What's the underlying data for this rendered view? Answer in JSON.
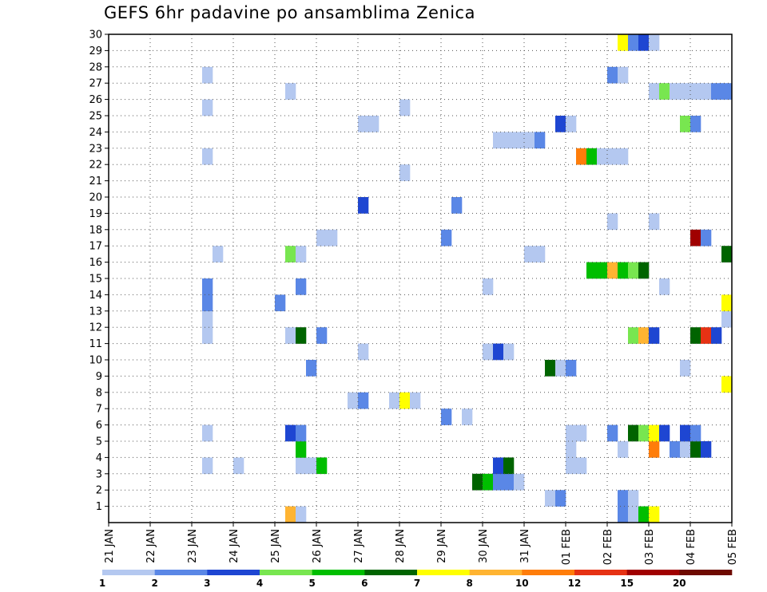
{
  "chart_data": {
    "type": "heatmap",
    "title": "GEFS 6hr padavine po ansamblima Zenica",
    "xlabel": "",
    "ylabel": "",
    "x_unit": "6-hour step",
    "x_ticks": [
      {
        "step": 0,
        "label": "21 JAN"
      },
      {
        "step": 4,
        "label": "22 JAN"
      },
      {
        "step": 8,
        "label": "23 JAN"
      },
      {
        "step": 12,
        "label": "24 JAN"
      },
      {
        "step": 16,
        "label": "25 JAN"
      },
      {
        "step": 20,
        "label": "26 JAN"
      },
      {
        "step": 24,
        "label": "27 JAN"
      },
      {
        "step": 28,
        "label": "28 JAN"
      },
      {
        "step": 32,
        "label": "29 JAN"
      },
      {
        "step": 36,
        "label": "30 JAN"
      },
      {
        "step": 40,
        "label": "31 JAN"
      },
      {
        "step": 44,
        "label": "01 FEB"
      },
      {
        "step": 48,
        "label": "02 FEB"
      },
      {
        "step": 52,
        "label": "03 FEB"
      },
      {
        "step": 56,
        "label": "04 FEB"
      },
      {
        "step": 60,
        "label": "05 FEB"
      }
    ],
    "xlim": [
      0,
      60
    ],
    "y_ticks": [
      1,
      2,
      3,
      4,
      5,
      6,
      7,
      8,
      9,
      10,
      11,
      12,
      13,
      14,
      15,
      16,
      17,
      18,
      19,
      20,
      21,
      22,
      23,
      24,
      25,
      26,
      27,
      28,
      29,
      30
    ],
    "ylim": [
      0,
      30
    ],
    "grid": true,
    "colorbar": {
      "labels": [
        "1",
        "2",
        "3",
        "4",
        "5",
        "6",
        "7",
        "8",
        "10",
        "12",
        "15",
        "20"
      ],
      "colors": [
        "#b4c8f0",
        "#5a87e6",
        "#1e46d2",
        "#78e650",
        "#00be00",
        "#006400",
        "#ffff00",
        "#ffb432",
        "#ff7d0a",
        "#e63214",
        "#a00000",
        "#6e0a00"
      ]
    },
    "cells": [
      {
        "x": 17,
        "y": 0,
        "v": 8
      },
      {
        "x": 18,
        "y": 0,
        "v": 1
      },
      {
        "x": 49,
        "y": 0,
        "v": 2
      },
      {
        "x": 50,
        "y": 0,
        "v": 1
      },
      {
        "x": 51,
        "y": 0,
        "v": 5
      },
      {
        "x": 52,
        "y": 0,
        "v": 7
      },
      {
        "x": 42,
        "y": 1,
        "v": 1
      },
      {
        "x": 43,
        "y": 1,
        "v": 2
      },
      {
        "x": 49,
        "y": 1,
        "v": 2
      },
      {
        "x": 50,
        "y": 1,
        "v": 1
      },
      {
        "x": 35,
        "y": 2,
        "v": 6
      },
      {
        "x": 36,
        "y": 2,
        "v": 5
      },
      {
        "x": 37,
        "y": 2,
        "v": 2
      },
      {
        "x": 38,
        "y": 2,
        "v": 2
      },
      {
        "x": 39,
        "y": 2,
        "v": 1
      },
      {
        "x": 9,
        "y": 3,
        "v": 1
      },
      {
        "x": 12,
        "y": 3,
        "v": 1
      },
      {
        "x": 18,
        "y": 3,
        "v": 1
      },
      {
        "x": 19,
        "y": 3,
        "v": 1
      },
      {
        "x": 20,
        "y": 3,
        "v": 5
      },
      {
        "x": 37,
        "y": 3,
        "v": 3
      },
      {
        "x": 38,
        "y": 3,
        "v": 6
      },
      {
        "x": 44,
        "y": 3,
        "v": 1
      },
      {
        "x": 45,
        "y": 3,
        "v": 1
      },
      {
        "x": 18,
        "y": 4,
        "v": 5
      },
      {
        "x": 44,
        "y": 4,
        "v": 1
      },
      {
        "x": 49,
        "y": 4,
        "v": 1
      },
      {
        "x": 52,
        "y": 4,
        "v": 10
      },
      {
        "x": 54,
        "y": 4,
        "v": 2
      },
      {
        "x": 55,
        "y": 4,
        "v": 1
      },
      {
        "x": 56,
        "y": 4,
        "v": 6
      },
      {
        "x": 57,
        "y": 4,
        "v": 3
      },
      {
        "x": 9,
        "y": 5,
        "v": 1
      },
      {
        "x": 17,
        "y": 5,
        "v": 3
      },
      {
        "x": 18,
        "y": 5,
        "v": 2
      },
      {
        "x": 44,
        "y": 5,
        "v": 1
      },
      {
        "x": 45,
        "y": 5,
        "v": 1
      },
      {
        "x": 48,
        "y": 5,
        "v": 2
      },
      {
        "x": 50,
        "y": 5,
        "v": 6
      },
      {
        "x": 51,
        "y": 5,
        "v": 4
      },
      {
        "x": 52,
        "y": 5,
        "v": 7
      },
      {
        "x": 53,
        "y": 5,
        "v": 3
      },
      {
        "x": 55,
        "y": 5,
        "v": 3
      },
      {
        "x": 56,
        "y": 5,
        "v": 2
      },
      {
        "x": 32,
        "y": 6,
        "v": 2
      },
      {
        "x": 34,
        "y": 6,
        "v": 1
      },
      {
        "x": 23,
        "y": 7,
        "v": 1
      },
      {
        "x": 24,
        "y": 7,
        "v": 2
      },
      {
        "x": 27,
        "y": 7,
        "v": 1
      },
      {
        "x": 28,
        "y": 7,
        "v": 7
      },
      {
        "x": 29,
        "y": 7,
        "v": 1
      },
      {
        "x": 59,
        "y": 8,
        "v": 7
      },
      {
        "x": 19,
        "y": 9,
        "v": 2
      },
      {
        "x": 42,
        "y": 9,
        "v": 6
      },
      {
        "x": 43,
        "y": 9,
        "v": 1
      },
      {
        "x": 44,
        "y": 9,
        "v": 2
      },
      {
        "x": 55,
        "y": 9,
        "v": 1
      },
      {
        "x": 24,
        "y": 10,
        "v": 1
      },
      {
        "x": 36,
        "y": 10,
        "v": 1
      },
      {
        "x": 37,
        "y": 10,
        "v": 3
      },
      {
        "x": 38,
        "y": 10,
        "v": 1
      },
      {
        "x": 9,
        "y": 11,
        "v": 1
      },
      {
        "x": 17,
        "y": 11,
        "v": 1
      },
      {
        "x": 18,
        "y": 11,
        "v": 6
      },
      {
        "x": 20,
        "y": 11,
        "v": 2
      },
      {
        "x": 50,
        "y": 11,
        "v": 4
      },
      {
        "x": 51,
        "y": 11,
        "v": 8
      },
      {
        "x": 52,
        "y": 11,
        "v": 3
      },
      {
        "x": 56,
        "y": 11,
        "v": 6
      },
      {
        "x": 57,
        "y": 11,
        "v": 12
      },
      {
        "x": 58,
        "y": 11,
        "v": 3
      },
      {
        "x": 9,
        "y": 12,
        "v": 1
      },
      {
        "x": 59,
        "y": 12,
        "v": 1
      },
      {
        "x": 9,
        "y": 13,
        "v": 2
      },
      {
        "x": 16,
        "y": 13,
        "v": 2
      },
      {
        "x": 59,
        "y": 13,
        "v": 7
      },
      {
        "x": 9,
        "y": 14,
        "v": 2
      },
      {
        "x": 18,
        "y": 14,
        "v": 2
      },
      {
        "x": 36,
        "y": 14,
        "v": 1
      },
      {
        "x": 53,
        "y": 14,
        "v": 1
      },
      {
        "x": 46,
        "y": 15,
        "v": 5
      },
      {
        "x": 47,
        "y": 15,
        "v": 5
      },
      {
        "x": 48,
        "y": 15,
        "v": 8
      },
      {
        "x": 49,
        "y": 15,
        "v": 5
      },
      {
        "x": 50,
        "y": 15,
        "v": 4
      },
      {
        "x": 51,
        "y": 15,
        "v": 6
      },
      {
        "x": 10,
        "y": 16,
        "v": 1
      },
      {
        "x": 17,
        "y": 16,
        "v": 4
      },
      {
        "x": 18,
        "y": 16,
        "v": 1
      },
      {
        "x": 40,
        "y": 16,
        "v": 1
      },
      {
        "x": 41,
        "y": 16,
        "v": 1
      },
      {
        "x": 59,
        "y": 16,
        "v": 6
      },
      {
        "x": 20,
        "y": 17,
        "v": 1
      },
      {
        "x": 21,
        "y": 17,
        "v": 1
      },
      {
        "x": 32,
        "y": 17,
        "v": 2
      },
      {
        "x": 56,
        "y": 17,
        "v": 15
      },
      {
        "x": 57,
        "y": 17,
        "v": 2
      },
      {
        "x": 48,
        "y": 18,
        "v": 1
      },
      {
        "x": 52,
        "y": 18,
        "v": 1
      },
      {
        "x": 24,
        "y": 19,
        "v": 3
      },
      {
        "x": 33,
        "y": 19,
        "v": 2
      },
      {
        "x": 28,
        "y": 21,
        "v": 1
      },
      {
        "x": 45,
        "y": 22,
        "v": 10
      },
      {
        "x": 46,
        "y": 22,
        "v": 5
      },
      {
        "x": 47,
        "y": 22,
        "v": 1
      },
      {
        "x": 48,
        "y": 22,
        "v": 1
      },
      {
        "x": 49,
        "y": 22,
        "v": 1
      },
      {
        "x": 9,
        "y": 22,
        "v": 1
      },
      {
        "x": 37,
        "y": 23,
        "v": 1
      },
      {
        "x": 38,
        "y": 23,
        "v": 1
      },
      {
        "x": 39,
        "y": 23,
        "v": 1
      },
      {
        "x": 40,
        "y": 23,
        "v": 1
      },
      {
        "x": 41,
        "y": 23,
        "v": 2
      },
      {
        "x": 24,
        "y": 24,
        "v": 1
      },
      {
        "x": 25,
        "y": 24,
        "v": 1
      },
      {
        "x": 43,
        "y": 24,
        "v": 3
      },
      {
        "x": 44,
        "y": 24,
        "v": 1
      },
      {
        "x": 55,
        "y": 24,
        "v": 4
      },
      {
        "x": 56,
        "y": 24,
        "v": 2
      },
      {
        "x": 9,
        "y": 25,
        "v": 1
      },
      {
        "x": 28,
        "y": 25,
        "v": 1
      },
      {
        "x": 17,
        "y": 26,
        "v": 1
      },
      {
        "x": 52,
        "y": 26,
        "v": 1
      },
      {
        "x": 53,
        "y": 26,
        "v": 4
      },
      {
        "x": 54,
        "y": 26,
        "v": 1
      },
      {
        "x": 55,
        "y": 26,
        "v": 1
      },
      {
        "x": 56,
        "y": 26,
        "v": 1
      },
      {
        "x": 57,
        "y": 26,
        "v": 1
      },
      {
        "x": 58,
        "y": 26,
        "v": 2
      },
      {
        "x": 59,
        "y": 26,
        "v": 2
      },
      {
        "x": 9,
        "y": 27,
        "v": 1
      },
      {
        "x": 48,
        "y": 27,
        "v": 2
      },
      {
        "x": 49,
        "y": 27,
        "v": 1
      },
      {
        "x": 49,
        "y": 29,
        "v": 7
      },
      {
        "x": 50,
        "y": 29,
        "v": 2
      },
      {
        "x": 51,
        "y": 29,
        "v": 3
      },
      {
        "x": 52,
        "y": 29,
        "v": 1
      }
    ]
  }
}
